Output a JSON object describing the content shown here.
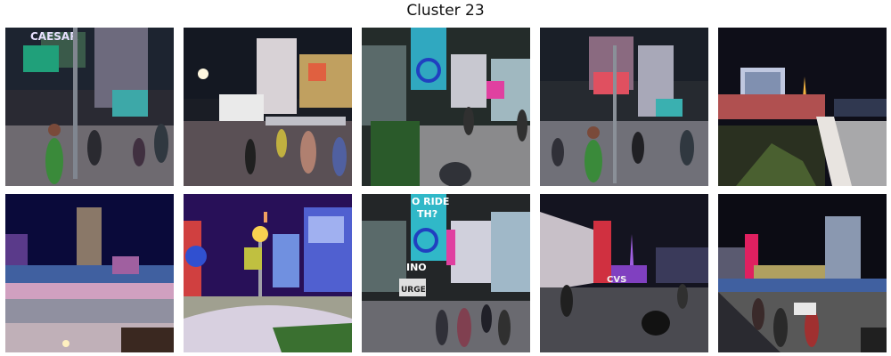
{
  "title": "Cluster 23",
  "images": [
    {
      "scene": "street-corner-crowd",
      "signs": [
        "CAESAR"
      ]
    },
    {
      "scene": "street-with-truck",
      "signs": []
    },
    {
      "scene": "billboard-plaza",
      "signs": []
    },
    {
      "scene": "street-corner-crowd",
      "signs": []
    },
    {
      "scene": "strip-skyline-eiffel",
      "signs": []
    },
    {
      "scene": "night-skyline-tower",
      "signs": []
    },
    {
      "scene": "street-lamp-casinos",
      "signs": []
    },
    {
      "scene": "billboard-plaza-closeup",
      "signs": [
        "O RIDE",
        "TH?",
        "INO",
        "URGE"
      ]
    },
    {
      "scene": "sidewalk-night",
      "signs": [
        "CVS"
      ]
    },
    {
      "scene": "overpass-skyline",
      "signs": []
    }
  ]
}
